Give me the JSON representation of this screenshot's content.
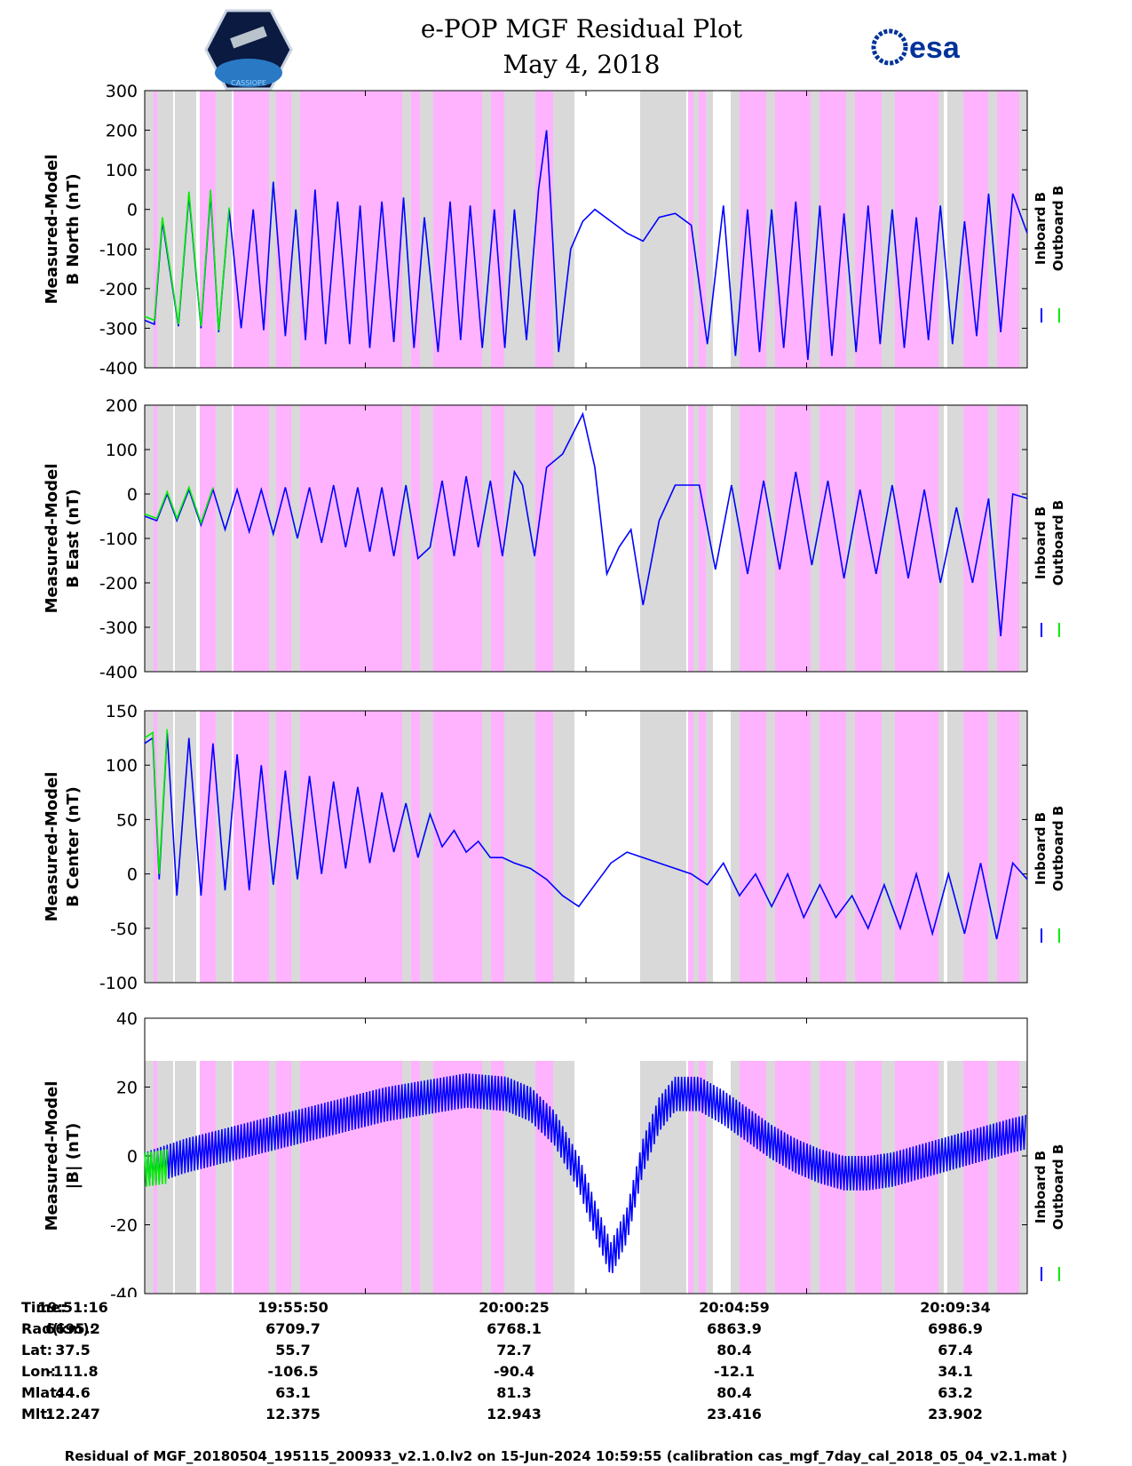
{
  "header": {
    "title": "e-POP MGF Residual Plot",
    "date": "May 4, 2018",
    "left_logo_text": "CASSIOPE",
    "right_logo_text": "esa"
  },
  "colors": {
    "inboard": "#0000ff",
    "outboard": "#00ee00",
    "pink_band": "#ffb3ff",
    "gray_band": "#d9d9d9"
  },
  "legend": {
    "inboard": "Inboard B",
    "outboard": "Outboard B"
  },
  "chart_data": [
    {
      "type": "line",
      "title": "",
      "ylabel": [
        "Measured-Model",
        "B North (nT)"
      ],
      "ylim": [
        -400,
        300
      ],
      "yticks": [
        300,
        200,
        100,
        0,
        -100,
        -200,
        -300,
        -400
      ],
      "xlim": [
        0,
        1098
      ],
      "series": [
        {
          "name": "Inboard B",
          "x": [
            0,
            12,
            22,
            42,
            55,
            70,
            82,
            92,
            105,
            120,
            135,
            148,
            160,
            175,
            188,
            200,
            212,
            225,
            240,
            255,
            268,
            280,
            295,
            310,
            322,
            335,
            348,
            365,
            380,
            393,
            405,
            420,
            435,
            448,
            460,
            475,
            490,
            500,
            505,
            515,
            530,
            545,
            560,
            580,
            600,
            620,
            640,
            660,
            680,
            700,
            720,
            735,
            750,
            765,
            780,
            795,
            810,
            825,
            840,
            855,
            870,
            885,
            900,
            915,
            930,
            945,
            960,
            975,
            990,
            1005,
            1020,
            1035,
            1050,
            1065,
            1080,
            1098
          ],
          "values": [
            -280,
            -290,
            -30,
            -295,
            35,
            -300,
            40,
            -310,
            0,
            -300,
            0,
            -305,
            70,
            -320,
            0,
            -330,
            50,
            -340,
            20,
            -340,
            10,
            -350,
            20,
            -335,
            30,
            -350,
            -20,
            -360,
            20,
            -330,
            10,
            -350,
            0,
            -350,
            0,
            -330,
            50,
            200,
            20,
            -360,
            -100,
            -30,
            0,
            -30,
            -60,
            -80,
            -20,
            -10,
            -40,
            -340,
            10,
            -370,
            0,
            -360,
            0,
            -350,
            20,
            -380,
            10,
            -370,
            -10,
            -360,
            10,
            -340,
            0,
            -350,
            -20,
            -330,
            10,
            -340,
            -30,
            -320,
            40,
            -310,
            40,
            -60
          ]
        },
        {
          "name": "Outboard B",
          "x": [
            0,
            12,
            22,
            42,
            55,
            70,
            82,
            92,
            105
          ],
          "values": [
            -270,
            -280,
            -20,
            -290,
            45,
            -295,
            50,
            -305,
            5
          ]
        }
      ],
      "bands": {
        "shaded_ranges": [
          [
            0,
            460
          ],
          [
            530,
            560
          ],
          [
            615,
            760
          ]
        ]
      }
    },
    {
      "type": "line",
      "ylabel": [
        "Measured-Model",
        "B East (nT)"
      ],
      "ylim": [
        -400,
        200
      ],
      "yticks": [
        200,
        100,
        0,
        -100,
        -200,
        -300,
        -400
      ],
      "xlim": [
        0,
        1098
      ],
      "series": [
        {
          "name": "Inboard B",
          "x": [
            0,
            15,
            28,
            40,
            55,
            70,
            85,
            100,
            115,
            130,
            145,
            160,
            175,
            190,
            205,
            220,
            235,
            250,
            265,
            280,
            295,
            310,
            325,
            340,
            355,
            370,
            385,
            400,
            415,
            430,
            445,
            460,
            470,
            485,
            500,
            520,
            545,
            560,
            575,
            590,
            605,
            620,
            640,
            660,
            690,
            710,
            730,
            750,
            770,
            790,
            810,
            830,
            850,
            870,
            890,
            910,
            930,
            950,
            970,
            990,
            1010,
            1030,
            1050,
            1065,
            1080,
            1098
          ],
          "values": [
            -50,
            -60,
            0,
            -60,
            10,
            -70,
            10,
            -80,
            10,
            -85,
            10,
            -90,
            15,
            -100,
            15,
            -110,
            20,
            -120,
            15,
            -130,
            15,
            -140,
            20,
            -145,
            -120,
            30,
            -140,
            40,
            -120,
            30,
            -140,
            50,
            20,
            -140,
            60,
            90,
            180,
            60,
            -180,
            -120,
            -80,
            -250,
            -60,
            20,
            20,
            -170,
            20,
            -180,
            30,
            -170,
            50,
            -160,
            30,
            -190,
            10,
            -180,
            20,
            -190,
            10,
            -200,
            -30,
            -200,
            -10,
            -320,
            0,
            -10
          ]
        },
        {
          "name": "Outboard B",
          "x": [
            0,
            15,
            28,
            40,
            55,
            70,
            85
          ],
          "values": [
            -45,
            -55,
            5,
            -55,
            15,
            -65,
            15
          ]
        }
      ]
    },
    {
      "type": "line",
      "ylabel": [
        "Measured-Model",
        "B Center (nT)"
      ],
      "ylim": [
        -100,
        150
      ],
      "yticks": [
        150,
        100,
        50,
        0,
        -50,
        -100
      ],
      "xlim": [
        0,
        1098
      ],
      "series": [
        {
          "name": "Inboard B",
          "x": [
            0,
            10,
            18,
            28,
            40,
            55,
            70,
            85,
            100,
            115,
            130,
            145,
            160,
            175,
            190,
            205,
            220,
            235,
            250,
            265,
            280,
            295,
            310,
            325,
            340,
            355,
            370,
            385,
            400,
            415,
            430,
            445,
            460,
            480,
            500,
            520,
            540,
            560,
            580,
            600,
            620,
            640,
            660,
            680,
            700,
            720,
            740,
            760,
            780,
            800,
            820,
            840,
            860,
            880,
            900,
            920,
            940,
            960,
            980,
            1000,
            1020,
            1040,
            1060,
            1080,
            1098
          ],
          "values": [
            120,
            125,
            -5,
            130,
            -20,
            125,
            -20,
            120,
            -15,
            110,
            -15,
            100,
            -10,
            95,
            -5,
            90,
            0,
            85,
            5,
            80,
            10,
            75,
            20,
            65,
            15,
            55,
            25,
            40,
            20,
            30,
            15,
            15,
            10,
            5,
            -5,
            -20,
            -30,
            -10,
            10,
            20,
            15,
            10,
            5,
            0,
            -10,
            10,
            -20,
            0,
            -30,
            0,
            -40,
            -10,
            -40,
            -20,
            -50,
            -10,
            -50,
            0,
            -55,
            0,
            -55,
            10,
            -60,
            10,
            -5
          ]
        },
        {
          "name": "Outboard B",
          "x": [
            0,
            10,
            18,
            28
          ],
          "values": [
            125,
            130,
            0,
            133
          ]
        }
      ]
    },
    {
      "type": "line",
      "ylabel": [
        "Measured-Model",
        "|B| (nT)"
      ],
      "ylim": [
        -40,
        40
      ],
      "yticks": [
        40,
        20,
        0,
        -20,
        -40
      ],
      "xlim": [
        0,
        1098
      ],
      "series": [
        {
          "name": "Inboard B",
          "x": [
            0,
            50,
            100,
            150,
            200,
            250,
            300,
            350,
            400,
            450,
            480,
            510,
            540,
            560,
            580,
            600,
            620,
            640,
            660,
            690,
            720,
            750,
            780,
            810,
            840,
            870,
            900,
            930,
            960,
            990,
            1020,
            1050,
            1080,
            1098
          ],
          "values": [
            -4,
            0,
            3,
            6,
            9,
            12,
            15,
            17,
            19,
            18,
            15,
            8,
            -5,
            -18,
            -30,
            -20,
            0,
            12,
            18,
            18,
            14,
            9,
            4,
            0,
            -3,
            -5,
            -5,
            -4,
            -2,
            0,
            2,
            4,
            6,
            7
          ]
        },
        {
          "name": "Outboard B",
          "x": [
            0,
            30
          ],
          "values": [
            -4,
            -3
          ]
        }
      ],
      "envelope_amplitude": 5
    }
  ],
  "info_table": {
    "rows": [
      {
        "label": "Time:",
        "values": [
          "19:51:16",
          "19:55:50",
          "20:00:25",
          "20:04:59",
          "20:09:34"
        ]
      },
      {
        "label": "Rad(km):",
        "values": [
          "6695.2",
          "6709.7",
          "6768.1",
          "6863.9",
          "6986.9"
        ]
      },
      {
        "label": "Lat:",
        "values": [
          "37.5",
          "55.7",
          "72.7",
          "80.4",
          "67.4"
        ]
      },
      {
        "label": "Lon:",
        "values": [
          "-111.8",
          "-106.5",
          "-90.4",
          "-12.1",
          "34.1"
        ]
      },
      {
        "label": "Mlat:",
        "values": [
          "44.6",
          "63.1",
          "81.3",
          "80.4",
          "63.2"
        ]
      },
      {
        "label": "Mlt:",
        "values": [
          "12.247",
          "12.375",
          "12.943",
          "23.416",
          "23.902"
        ]
      }
    ]
  },
  "footer": "Residual of MGF_20180504_195115_200933_v2.1.0.lv2 on 15-Jun-2024 10:59:55 (calibration cas_mgf_7day_cal_2018_05_04_v2.1.mat )"
}
